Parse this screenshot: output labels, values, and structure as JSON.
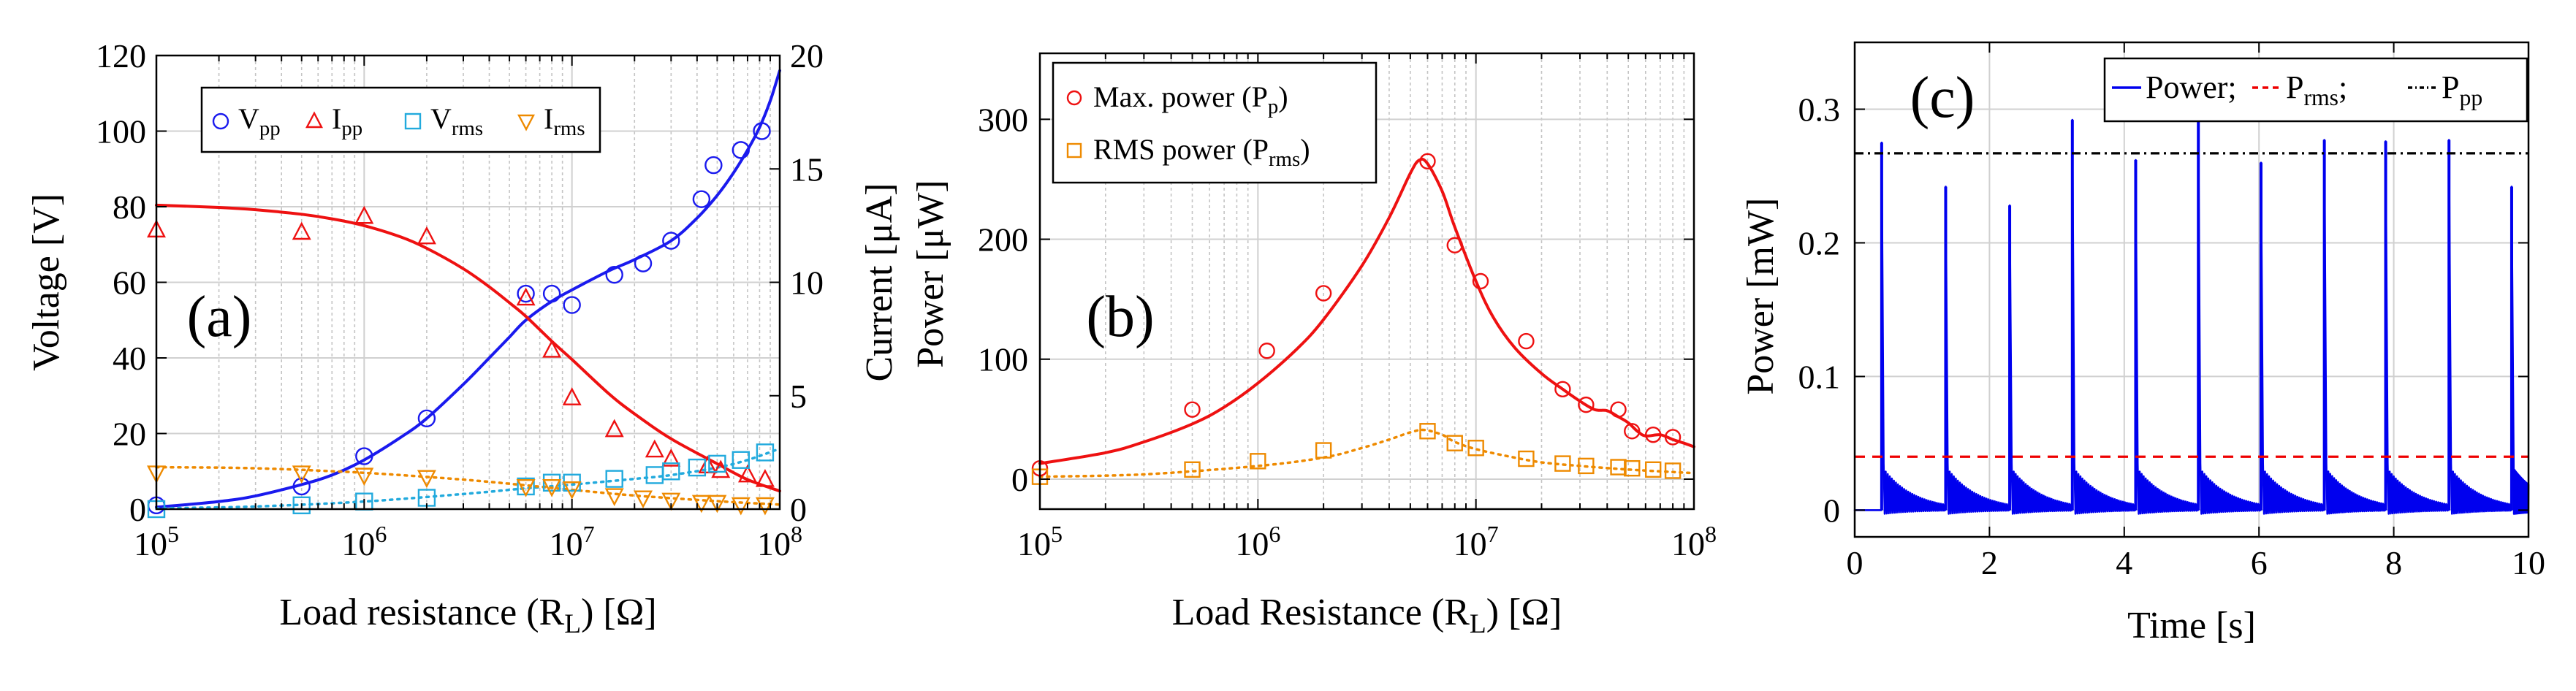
{
  "colors": {
    "voltage_curve": "#1a1aee",
    "current_curve": "#ee1111",
    "vrms": "#22aadd",
    "irms": "#ee8a00",
    "power_curve": "#ee1111",
    "rms_curve": "#ee8a00",
    "time_power": "#0000ee",
    "prms_line": "#ee0000",
    "ppp_line": "#000000"
  },
  "chart_data": [
    {
      "id": "a",
      "type": "scatter",
      "panel_label": "(a)",
      "xscale": "log",
      "xlim": [
        100000,
        100000000
      ],
      "x_ticks": [
        {
          "base": "10",
          "exp": "5"
        },
        {
          "base": "10",
          "exp": "6"
        },
        {
          "base": "10",
          "exp": "7"
        },
        {
          "base": "10",
          "exp": "8"
        }
      ],
      "xlabel": {
        "pre": "Load resistance (R",
        "sub": "L",
        "post": ") [Ω]"
      },
      "ylabel_left": "Voltage [V]",
      "ylim_left": [
        0,
        120
      ],
      "y_ticks_left": [
        "0",
        "20",
        "40",
        "60",
        "80",
        "100",
        "120"
      ],
      "ylabel_right": "Current [μA]",
      "ylim_right": [
        0,
        20
      ],
      "y_ticks_right": [
        "0",
        "5",
        "10",
        "15",
        "20"
      ],
      "legend": [
        {
          "marker": "circle",
          "main": "V",
          "sub": "pp"
        },
        {
          "marker": "triangle-up",
          "main": "I",
          "sub": "pp"
        },
        {
          "marker": "square",
          "main": "V",
          "sub": "rms"
        },
        {
          "marker": "triangle-down",
          "main": "I",
          "sub": "rms"
        }
      ],
      "series": [
        {
          "name": "Vpp",
          "axis": "left",
          "marker": "circle",
          "color": "#1a1aee",
          "x": [
            100000,
            500000,
            1000000,
            2000000,
            6000000,
            8000000,
            10000000,
            16000000,
            22000000,
            30000000,
            42000000,
            48000000,
            65000000,
            82000000
          ],
          "y": [
            1,
            6,
            14,
            24,
            57,
            57,
            54,
            62,
            65,
            71,
            82,
            91,
            95,
            100
          ]
        },
        {
          "name": "Vpp fit",
          "axis": "left",
          "line": "solid",
          "color": "#1a1aee",
          "x": [
            100000,
            200000,
            300000,
            500000,
            700000,
            1000000,
            1500000,
            2000000,
            3000000,
            4000000,
            5000000,
            6000000,
            8000000,
            10000000,
            15000000,
            20000000,
            30000000,
            40000000,
            50000000,
            60000000,
            70000000,
            80000000,
            90000000,
            100000000
          ],
          "y": [
            0.5,
            2,
            3.5,
            6.5,
            9,
            13,
            19,
            24,
            33,
            40,
            45.5,
            50,
            55,
            58,
            63,
            66,
            71,
            77,
            83,
            89,
            95,
            101,
            108,
            116
          ]
        },
        {
          "name": "Ipp",
          "axis": "right",
          "marker": "triangle-up",
          "color": "#ee1111",
          "x": [
            100000,
            500000,
            1000000,
            2000000,
            6000000,
            8000000,
            10000000,
            16000000,
            25000000,
            30000000,
            45000000,
            52000000,
            70000000,
            85000000
          ],
          "y": [
            12.3,
            12.2,
            12.9,
            12.0,
            9.3,
            7.0,
            4.9,
            3.5,
            2.6,
            2.2,
            1.9,
            1.7,
            1.5,
            1.3
          ]
        },
        {
          "name": "Ipp fit",
          "axis": "right",
          "line": "solid",
          "color": "#ee1111",
          "x": [
            100000,
            200000,
            300000,
            500000,
            700000,
            1000000,
            1500000,
            2000000,
            3000000,
            4000000,
            5000000,
            6000000,
            8000000,
            10000000,
            15000000,
            20000000,
            30000000,
            50000000,
            70000000,
            100000000
          ],
          "y": [
            13.4,
            13.3,
            13.2,
            13.0,
            12.8,
            12.5,
            12.0,
            11.5,
            10.6,
            9.8,
            9.1,
            8.5,
            7.4,
            6.6,
            5.1,
            4.2,
            3.1,
            2.0,
            1.3,
            0.8
          ]
        },
        {
          "name": "Vrms",
          "axis": "left",
          "marker": "square",
          "color": "#22aadd",
          "x": [
            100000,
            500000,
            1000000,
            2000000,
            6000000,
            8000000,
            10000000,
            16000000,
            25000000,
            30000000,
            40000000,
            50000000,
            65000000,
            85000000
          ],
          "y": [
            0,
            1,
            2,
            3,
            6,
            7,
            7,
            8,
            9,
            10,
            11,
            12,
            13,
            15
          ]
        },
        {
          "name": "Vrms fit",
          "axis": "left",
          "line": "dotted",
          "color": "#22aadd",
          "x": [
            100000,
            300000,
            1000000,
            3000000,
            6000000,
            10000000,
            20000000,
            30000000,
            50000000,
            70000000,
            100000000
          ],
          "y": [
            0.2,
            0.7,
            2,
            4,
            5.5,
            6.5,
            8,
            9,
            11,
            13,
            16
          ]
        },
        {
          "name": "Irms",
          "axis": "right",
          "marker": "triangle-down",
          "color": "#ee8a00",
          "x": [
            100000,
            500000,
            1000000,
            2000000,
            6000000,
            8000000,
            10000000,
            16000000,
            22000000,
            30000000,
            42000000,
            50000000,
            65000000,
            85000000
          ],
          "y": [
            1.6,
            1.6,
            1.5,
            1.4,
            1.0,
            1.0,
            0.9,
            0.6,
            0.5,
            0.4,
            0.3,
            0.3,
            0.2,
            0.2
          ]
        },
        {
          "name": "Irms fit",
          "axis": "right",
          "line": "dotted",
          "color": "#ee8a00",
          "x": [
            100000,
            300000,
            1000000,
            3000000,
            6000000,
            10000000,
            20000000,
            50000000,
            100000000
          ],
          "y": [
            1.85,
            1.8,
            1.6,
            1.3,
            1.05,
            0.85,
            0.6,
            0.35,
            0.2
          ]
        }
      ]
    },
    {
      "id": "b",
      "type": "scatter",
      "panel_label": "(b)",
      "xscale": "log",
      "xlim": [
        100000,
        100000000
      ],
      "x_ticks": [
        {
          "base": "10",
          "exp": "5"
        },
        {
          "base": "10",
          "exp": "6"
        },
        {
          "base": "10",
          "exp": "7"
        },
        {
          "base": "10",
          "exp": "8"
        }
      ],
      "xlabel": {
        "pre": "Load Resistance (R",
        "sub": "L",
        "post": ") [Ω]"
      },
      "ylabel": "Power [μW]",
      "ylim": [
        -25,
        355
      ],
      "y_ticks": [
        "0",
        "100",
        "200",
        "300"
      ],
      "legend": [
        {
          "marker": "circle",
          "main": "Max. power (P",
          "sub": "p",
          "post": ")"
        },
        {
          "marker": "square",
          "main": "RMS power (P",
          "sub": "rms",
          "post": ")"
        }
      ],
      "series": [
        {
          "name": "Pp",
          "marker": "circle",
          "color": "#ee1111",
          "x": [
            100000,
            500000,
            1100000,
            2000000,
            6000000,
            8000000,
            10500000,
            17000000,
            25000000,
            32000000,
            45000000,
            52000000,
            65000000,
            80000000
          ],
          "y": [
            9,
            58,
            107,
            155,
            265,
            195,
            165,
            115,
            75,
            62,
            58,
            40,
            37,
            35
          ]
        },
        {
          "name": "Pp fit",
          "line": "solid",
          "color": "#ee1111",
          "x": [
            100000,
            200000,
            300000,
            500000,
            700000,
            1000000,
            1500000,
            2000000,
            3000000,
            4000000,
            5000000,
            5500000,
            6000000,
            7000000,
            8000000,
            10000000,
            12000000,
            15000000,
            20000000,
            25000000,
            30000000,
            35000000,
            40000000,
            45000000,
            50000000,
            55000000,
            60000000,
            70000000,
            80000000,
            90000000,
            100000000
          ],
          "y": [
            13,
            22,
            31,
            46,
            60,
            80,
            108,
            133,
            178,
            218,
            255,
            266,
            263,
            240,
            210,
            165,
            135,
            110,
            88,
            75,
            65,
            58,
            57,
            52,
            47,
            40,
            36,
            37,
            33,
            30,
            27
          ]
        },
        {
          "name": "Prms",
          "marker": "square",
          "color": "#ee8a00",
          "x": [
            100000,
            500000,
            1000000,
            2000000,
            6000000,
            8000000,
            10000000,
            17000000,
            25000000,
            32000000,
            45000000,
            52000000,
            65000000,
            80000000
          ],
          "y": [
            2,
            8,
            15,
            24,
            40,
            30,
            26,
            17,
            13,
            11,
            10,
            9,
            8,
            7
          ]
        },
        {
          "name": "Prms fit",
          "line": "dotted",
          "color": "#ee8a00",
          "x": [
            100000,
            300000,
            1000000,
            2000000,
            3000000,
            4000000,
            5000000,
            5800000,
            7000000,
            8000000,
            10000000,
            15000000,
            20000000,
            30000000,
            50000000,
            100000000
          ],
          "y": [
            2,
            4,
            11,
            18,
            26,
            33,
            39,
            41,
            37,
            31,
            25,
            18,
            14,
            11,
            8,
            5
          ]
        }
      ]
    },
    {
      "id": "c",
      "type": "line",
      "panel_label": "(c)",
      "xlim": [
        0,
        10
      ],
      "x_ticks": [
        "0",
        "2",
        "4",
        "6",
        "8",
        "10"
      ],
      "xlabel": "Time [s]",
      "ylabel": "Power [mW]",
      "ylim": [
        -0.02,
        0.35
      ],
      "y_ticks": [
        "0",
        "0.1",
        "0.2",
        "0.3"
      ],
      "legend": [
        {
          "kind": "solid",
          "color": "#0000ee",
          "main": "Power;"
        },
        {
          "kind": "dashed",
          "color": "#ee0000",
          "main": "P",
          "sub": "rms",
          "post": ";"
        },
        {
          "kind": "dashdot",
          "color": "#000000",
          "main": "P",
          "sub": "pp"
        }
      ],
      "pulses": {
        "t": [
          0.4,
          1.35,
          2.3,
          3.23,
          4.17,
          5.1,
          6.03,
          6.97,
          7.88,
          8.82,
          9.75
        ],
        "peak": [
          0.275,
          0.242,
          0.228,
          0.292,
          0.262,
          0.292,
          0.26,
          0.277,
          0.276,
          0.277,
          0.242
        ],
        "decay_level": 0.015,
        "baseline": 0.0
      },
      "hlines": [
        {
          "name": "Prms",
          "y": 0.04,
          "style": "dashed",
          "color": "#ee0000"
        },
        {
          "name": "Ppp",
          "y": 0.267,
          "style": "dashdot",
          "color": "#000000"
        }
      ]
    }
  ]
}
